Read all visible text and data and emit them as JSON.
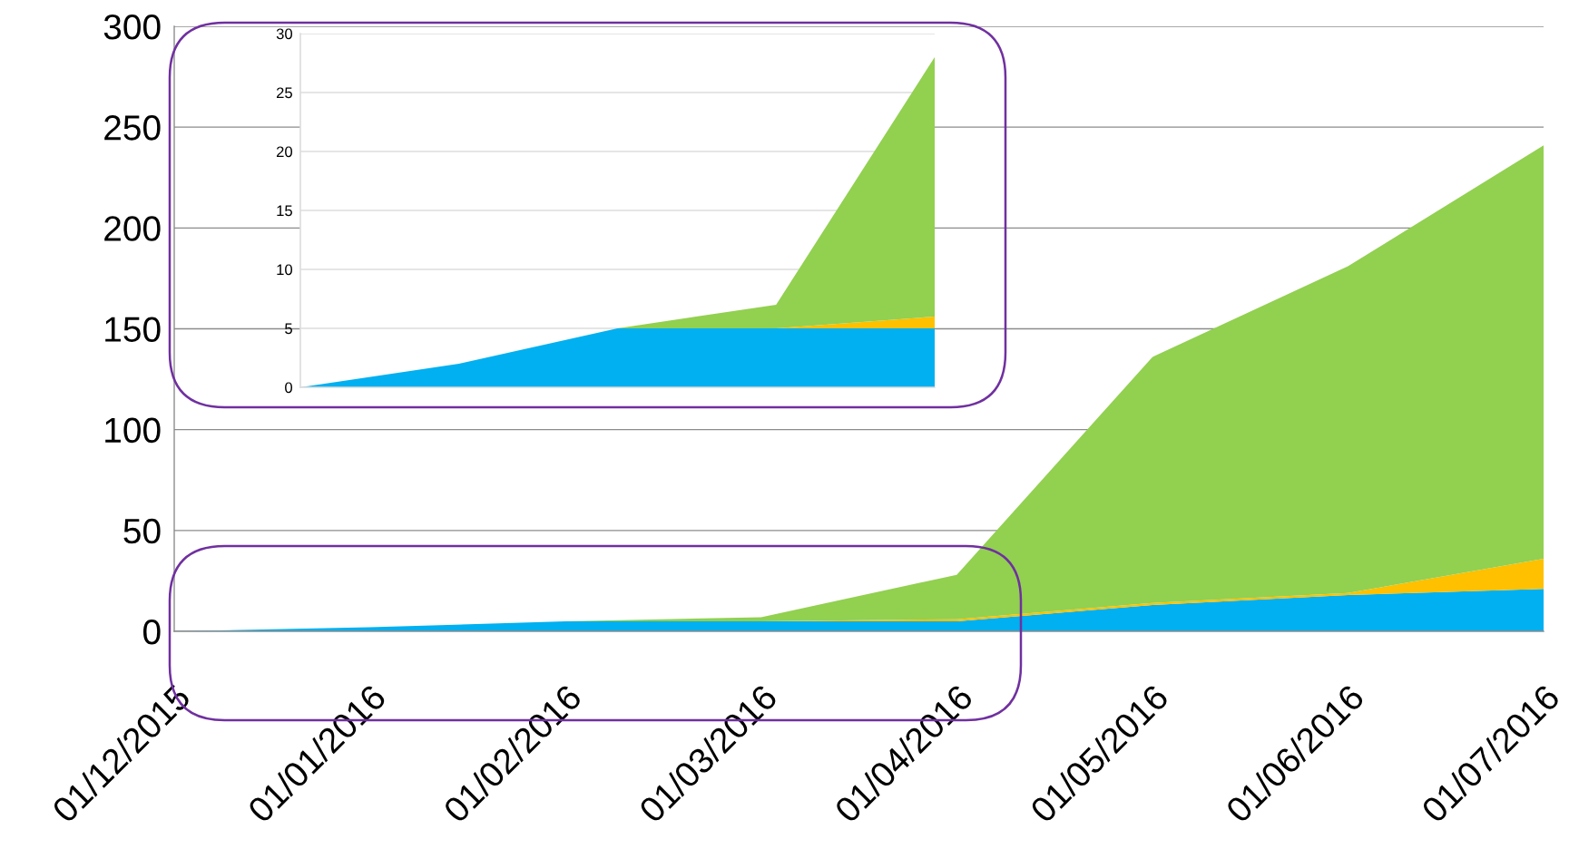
{
  "chart_data": [
    {
      "type": "area",
      "stacked": true,
      "categories": [
        "01/12/2015",
        "01/01/2016",
        "01/02/2016",
        "01/03/2016",
        "01/04/2016",
        "01/05/2016",
        "01/06/2016",
        "01/07/2016"
      ],
      "series": [
        {
          "color": "#00b0f0",
          "values": [
            0,
            2,
            5,
            5,
            5,
            13,
            18,
            21
          ]
        },
        {
          "color": "#ffc000",
          "values": [
            0,
            0,
            0,
            0,
            1,
            1,
            1,
            15
          ]
        },
        {
          "color": "#92d050",
          "values": [
            0,
            0,
            0,
            2,
            22,
            122,
            162,
            205
          ]
        }
      ],
      "ylim": [
        0,
        300
      ],
      "yticks": [
        0,
        50,
        100,
        150,
        200,
        250,
        300
      ],
      "grid": "y"
    },
    {
      "type": "area",
      "stacked": true,
      "categories": [
        null,
        null,
        null,
        null,
        null
      ],
      "series": [
        {
          "color": "#00b0f0",
          "values": [
            0,
            2,
            5,
            5,
            5
          ]
        },
        {
          "color": "#ffc000",
          "values": [
            0,
            0,
            0,
            0,
            1
          ]
        },
        {
          "color": "#92d050",
          "values": [
            0,
            0,
            0,
            2,
            22
          ]
        }
      ],
      "ylim": [
        0,
        30
      ],
      "yticks": [
        0,
        5,
        10,
        15,
        20,
        25,
        30
      ],
      "grid": "y",
      "tick_labels": "y"
    }
  ]
}
